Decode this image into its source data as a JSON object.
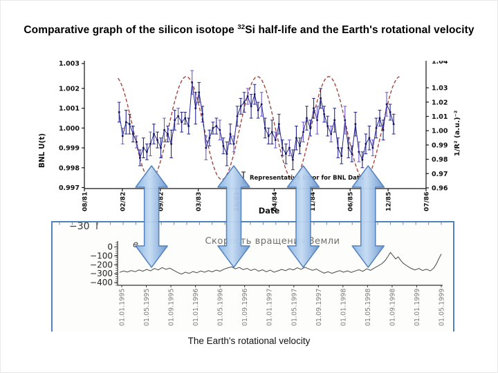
{
  "slide": {
    "title_prefix": "Comparative graph of the silicon isotope ",
    "title_sup": "32",
    "title_suffix": "Si half-life and the Earth's rotational velocity",
    "caption": "The Earth's rotational velocity"
  },
  "arrows": {
    "count": 4,
    "at_months": [
      11.6,
      25.8,
      37.8,
      49.0
    ],
    "fill_light": "#c4dbf3",
    "fill_mid": "#8ab4e2",
    "fill_dark": "#6b97cf",
    "stroke": "#4a7cba"
  },
  "chart_data": [
    {
      "id": "si32_half_life",
      "type": "line",
      "xlabel": "Date",
      "ylabel_left": "BNL U(t)",
      "ylabel_right": "1/R² (a.u.)⁻²",
      "legend": "Representative Error for BNL Data",
      "x_ticks": [
        "08/81",
        "02/82",
        "09/82",
        "03/83",
        "10/83",
        "04/84",
        "11/84",
        "06/85",
        "12/85",
        "07/86"
      ],
      "x_range_months": [
        0,
        59
      ],
      "y_left_ticks": [
        "1.003",
        "1.002",
        "1.001",
        "1.000",
        "0.999",
        "0.998",
        "0.997"
      ],
      "y_left_range": [
        0.997,
        1.003
      ],
      "y_right_ticks": [
        "1.03",
        "1.02",
        "1.01",
        "1.00",
        "0.99",
        "0.98",
        "0.97",
        "0.96"
      ],
      "y_right_top_clipped": "1.04",
      "y_right_range": [
        0.96,
        1.04
      ],
      "grid": false,
      "modulation": {
        "name": "1/R² annual modulation",
        "center": 1.0,
        "amplitude": 0.0026,
        "period_months": 12.3,
        "max_at_month": 17.6,
        "start_month": 5.8,
        "end_month": 54.6,
        "color": "#a2453d",
        "line_style": "dashed"
      },
      "series": [
        {
          "name": "BNL U(t) with representative errors",
          "color": "#23238a",
          "alt_color": "#6a55c9",
          "points_t_v_err": [
            [
              6.0,
              1.0008,
              0.0005
            ],
            [
              6.6,
              0.9996,
              0.0004
            ],
            [
              7.2,
              1.0003,
              0.0006
            ],
            [
              7.8,
              1.0002,
              0.0005
            ],
            [
              8.4,
              0.9997,
              0.0004
            ],
            [
              9.0,
              0.9993,
              0.0003
            ],
            [
              9.6,
              0.9985,
              0.0004
            ],
            [
              10.2,
              0.999,
              0.0005
            ],
            [
              10.8,
              0.9988,
              0.0004
            ],
            [
              11.4,
              0.9992,
              0.0006
            ],
            [
              12.0,
              0.9997,
              0.0005
            ],
            [
              12.6,
              0.9994,
              0.0004
            ],
            [
              13.2,
              0.999,
              0.0005
            ],
            [
              13.8,
              0.9999,
              0.0006
            ],
            [
              14.4,
              0.9997,
              0.0004
            ],
            [
              15.0,
              0.9992,
              0.0007
            ],
            [
              15.6,
              1.0004,
              0.0005
            ],
            [
              16.2,
              1.0006,
              0.0004
            ],
            [
              16.8,
              1.0003,
              0.0005
            ],
            [
              17.4,
              1.0005,
              0.0003
            ],
            [
              18.0,
              1.0001,
              0.0004
            ],
            [
              18.6,
              1.0023,
              0.0006
            ],
            [
              19.2,
              1.001,
              0.0008
            ],
            [
              19.8,
              1.0018,
              0.0005
            ],
            [
              20.4,
              1.0007,
              0.0004
            ],
            [
              21.0,
              0.999,
              0.0006
            ],
            [
              21.6,
              0.9995,
              0.0004
            ],
            [
              22.2,
              1.0,
              0.0003
            ],
            [
              22.8,
              1.0001,
              0.0004
            ],
            [
              23.4,
              0.9999,
              0.0005
            ],
            [
              24.0,
              0.9991,
              0.0004
            ],
            [
              24.6,
              0.9987,
              0.0006
            ],
            [
              25.2,
              0.9997,
              0.0005
            ],
            [
              25.8,
              0.9992,
              0.0004
            ],
            [
              26.4,
              1.0006,
              0.0005
            ],
            [
              27.0,
              1.0011,
              0.0004
            ],
            [
              27.6,
              1.0013,
              0.0005
            ],
            [
              28.2,
              1.0016,
              0.0004
            ],
            [
              28.8,
              1.0011,
              0.0006
            ],
            [
              29.4,
              1.0017,
              0.0005
            ],
            [
              30.0,
              1.0009,
              0.0004
            ],
            [
              30.6,
              1.0012,
              0.0006
            ],
            [
              31.2,
              1.0,
              0.0005
            ],
            [
              31.8,
              0.9996,
              0.0004
            ],
            [
              32.4,
              0.9998,
              0.0006
            ],
            [
              33.0,
              0.9994,
              0.0004
            ],
            [
              33.6,
              1.0002,
              0.0005
            ],
            [
              34.2,
              0.999,
              0.0004
            ],
            [
              34.8,
              0.9987,
              0.0005
            ],
            [
              35.4,
              0.999,
              0.0004
            ],
            [
              36.0,
              0.9984,
              0.0005
            ],
            [
              36.6,
              0.9995,
              0.0006
            ],
            [
              37.2,
              0.9991,
              0.0004
            ],
            [
              37.8,
              0.9998,
              0.0005
            ],
            [
              38.4,
              1.0005,
              0.0006
            ],
            [
              39.0,
              1.0,
              0.0004
            ],
            [
              39.6,
              1.001,
              0.0005
            ],
            [
              40.2,
              1.0004,
              0.0007
            ],
            [
              40.8,
              1.0015,
              0.0005
            ],
            [
              41.4,
              1.0007,
              0.0004
            ],
            [
              42.0,
              1.0001,
              0.0005
            ],
            [
              42.6,
              0.9997,
              0.0004
            ],
            [
              43.2,
              1.0004,
              0.0006
            ],
            [
              43.8,
              0.999,
              0.0005
            ],
            [
              44.4,
              0.9986,
              0.0004
            ],
            [
              45.0,
              1.0004,
              0.0007
            ],
            [
              45.6,
              0.999,
              0.0005
            ],
            [
              46.2,
              0.9987,
              0.0004
            ],
            [
              46.8,
              1.0002,
              0.0006
            ],
            [
              47.4,
              0.9988,
              0.0005
            ],
            [
              48.0,
              0.9984,
              0.0004
            ],
            [
              48.6,
              0.9992,
              0.0005
            ],
            [
              49.2,
              0.9995,
              0.0006
            ],
            [
              49.8,
              0.999,
              0.0004
            ],
            [
              50.4,
              1.0,
              0.0005
            ],
            [
              51.0,
              1.0005,
              0.0004
            ],
            [
              51.6,
              0.9999,
              0.0005
            ],
            [
              52.2,
              1.0012,
              0.0006
            ],
            [
              52.8,
              1.0008,
              0.0004
            ],
            [
              53.4,
              1.0002,
              0.0005
            ]
          ]
        }
      ]
    },
    {
      "id": "earth_rotational_velocity",
      "type": "line",
      "title": "Скорость вращения Земли",
      "panel_label": "e",
      "cropped_top_tick_label": "−30",
      "y_ticks": [
        "0",
        "−100",
        "−200",
        "−300",
        "−400"
      ],
      "y_tick_values": [
        0,
        -100,
        -200,
        -300,
        -400
      ],
      "y_range": [
        -430,
        30
      ],
      "x_ticks": [
        "01.01.1995",
        "01.05.1995",
        "01.09.1995",
        "01.01.1996",
        "01.05.1996",
        "01.09.1996",
        "01.01.1997",
        "01.05.1997",
        "01.09.1997",
        "01.01.1998",
        "01.05.1998",
        "01.09.1998",
        "01.01.1999",
        "01.05.1999"
      ],
      "grid": false,
      "series": [
        {
          "name": "Earth rotation velocity deviation",
          "color": "#474747",
          "points_xpct_v": [
            [
              0,
              -285
            ],
            [
              1.2,
              -270
            ],
            [
              2.4,
              -282
            ],
            [
              3.6,
              -265
            ],
            [
              4.8,
              -278
            ],
            [
              6,
              -258
            ],
            [
              7.2,
              -272
            ],
            [
              8.4,
              -252
            ],
            [
              9.6,
              -268
            ],
            [
              10.8,
              -242
            ],
            [
              12,
              -258
            ],
            [
              13.2,
              -232
            ],
            [
              14.4,
              -252
            ],
            [
              15.6,
              -238
            ],
            [
              16.8,
              -262
            ],
            [
              18,
              -286
            ],
            [
              19.2,
              -305
            ],
            [
              20.4,
              -283
            ],
            [
              21.6,
              -296
            ],
            [
              22.8,
              -276
            ],
            [
              24,
              -290
            ],
            [
              25.2,
              -270
            ],
            [
              26.4,
              -284
            ],
            [
              27.6,
              -266
            ],
            [
              28.8,
              -280
            ],
            [
              30,
              -260
            ],
            [
              31.2,
              -272
            ],
            [
              32.4,
              -250
            ],
            [
              33.6,
              -236
            ],
            [
              34.8,
              -224
            ],
            [
              36,
              -246
            ],
            [
              37.2,
              -230
            ],
            [
              38.4,
              -254
            ],
            [
              39.6,
              -240
            ],
            [
              40.8,
              -264
            ],
            [
              42,
              -248
            ],
            [
              43.2,
              -272
            ],
            [
              44.4,
              -256
            ],
            [
              45.6,
              -278
            ],
            [
              46.8,
              -260
            ],
            [
              48,
              -284
            ],
            [
              49.2,
              -268
            ],
            [
              50.4,
              -252
            ],
            [
              51.6,
              -266
            ],
            [
              52.8,
              -244
            ],
            [
              54,
              -258
            ],
            [
              55.2,
              -234
            ],
            [
              56.4,
              -250
            ],
            [
              57.6,
              -228
            ],
            [
              58.8,
              -246
            ],
            [
              60,
              -262
            ],
            [
              61.2,
              -248
            ],
            [
              62.4,
              -274
            ],
            [
              63.6,
              -294
            ],
            [
              64.8,
              -278
            ],
            [
              66,
              -296
            ],
            [
              67.2,
              -280
            ],
            [
              68.4,
              -266
            ],
            [
              69.6,
              -284
            ],
            [
              70.8,
              -268
            ],
            [
              72,
              -286
            ],
            [
              73.2,
              -270
            ],
            [
              74.4,
              -256
            ],
            [
              75.6,
              -274
            ],
            [
              76.8,
              -246
            ],
            [
              78,
              -262
            ],
            [
              79.2,
              -236
            ],
            [
              80.4,
              -212
            ],
            [
              81.6,
              -186
            ],
            [
              82.6,
              -150
            ],
            [
              83.4,
              -108
            ],
            [
              84.2,
              -62
            ],
            [
              85,
              -98
            ],
            [
              85.8,
              -135
            ],
            [
              86.6,
              -112
            ],
            [
              87.4,
              -152
            ],
            [
              88.2,
              -184
            ],
            [
              89.4,
              -214
            ],
            [
              90.6,
              -240
            ],
            [
              91.8,
              -258
            ],
            [
              93,
              -242
            ],
            [
              94.2,
              -264
            ],
            [
              95.4,
              -250
            ],
            [
              96.6,
              -268
            ],
            [
              97.6,
              -240
            ],
            [
              98.4,
              -195
            ],
            [
              99.2,
              -135
            ],
            [
              100,
              -78
            ]
          ]
        }
      ]
    }
  ]
}
